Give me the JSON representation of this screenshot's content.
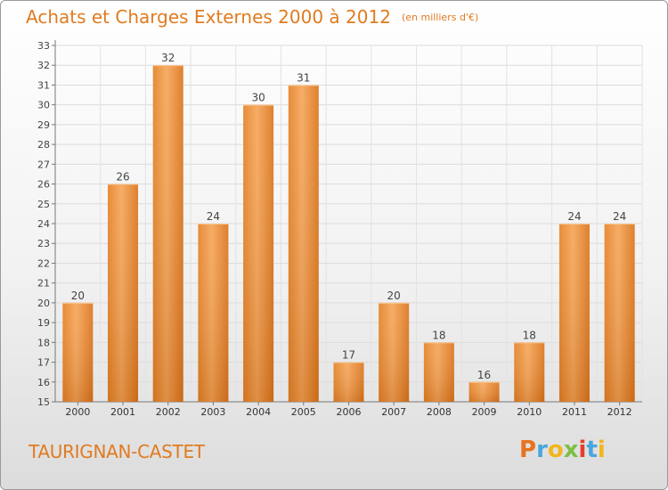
{
  "chart_data": {
    "type": "bar",
    "title": "Achats et Charges Externes 2000 à 2012",
    "unit_label": "(en milliers d'€)",
    "categories": [
      "2000",
      "2001",
      "2002",
      "2003",
      "2004",
      "2005",
      "2006",
      "2007",
      "2008",
      "2009",
      "2010",
      "2011",
      "2012"
    ],
    "values": [
      20,
      26,
      32,
      24,
      30,
      31,
      17,
      20,
      18,
      16,
      18,
      24,
      24
    ],
    "ylim": [
      15,
      33
    ],
    "yticks": [
      15,
      16,
      17,
      18,
      19,
      20,
      21,
      22,
      23,
      24,
      25,
      26,
      27,
      28,
      29,
      30,
      31,
      32,
      33
    ],
    "xlabel": "",
    "ylabel": "",
    "grid": true,
    "bar_color": "#f0923a"
  },
  "commune": "TAURIGNAN-CASTET",
  "logo": {
    "letters": [
      "P",
      "r",
      "o",
      "x",
      "i",
      "t",
      "i"
    ],
    "colors": [
      "#e8731e",
      "#49a6de",
      "#f2b61c",
      "#7cc042",
      "#e53e2b",
      "#49a6de",
      "#f2b61c"
    ]
  },
  "colors": {
    "accent": "#e07b20",
    "bar_light": "#f6a659",
    "bar_dark": "#d7721a"
  }
}
